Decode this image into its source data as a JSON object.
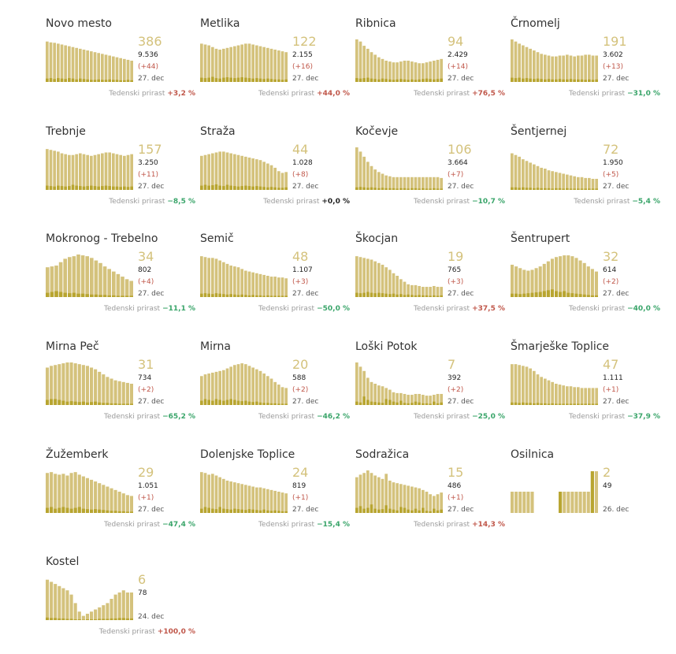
{
  "colors": {
    "bar": "#d4c27c",
    "bar_low": "#b8a530",
    "bar_older": "#d8c786",
    "positive": "#c0574a",
    "negative": "#3aa56a",
    "label": "#9a9a9a"
  },
  "growth_label": "Tedenski prirast",
  "chart_data": [
    {
      "type": "bar",
      "name": "Novo mesto",
      "active": "386",
      "total": "9.536",
      "delta": "(+44)",
      "date": "27. dec",
      "growth": "+3,2 %",
      "values": [
        95,
        93,
        92,
        90,
        88,
        86,
        84,
        82,
        80,
        78,
        76,
        74,
        72,
        70,
        68,
        66,
        64,
        62,
        60,
        58,
        56,
        54,
        52,
        50
      ],
      "lows": [
        8,
        9,
        7,
        9,
        8,
        7,
        9,
        8,
        6,
        8,
        7,
        6,
        5,
        5,
        6,
        5,
        5,
        6,
        5,
        5,
        4,
        4,
        5,
        4
      ]
    },
    {
      "type": "bar",
      "name": "Metlika",
      "active": "122",
      "total": "2.155",
      "delta": "(+16)",
      "date": "27. dec",
      "growth": "+44,0 %",
      "values": [
        90,
        88,
        86,
        82,
        78,
        76,
        78,
        80,
        82,
        84,
        86,
        88,
        90,
        90,
        88,
        86,
        84,
        82,
        80,
        78,
        76,
        74,
        72,
        70
      ],
      "lows": [
        10,
        9,
        10,
        12,
        9,
        8,
        10,
        11,
        10,
        9,
        10,
        11,
        10,
        9,
        8,
        9,
        8,
        7,
        8,
        7,
        6,
        6,
        5,
        6
      ]
    },
    {
      "type": "bar",
      "name": "Ribnica",
      "active": "94",
      "total": "2.429",
      "delta": "(+14)",
      "date": "27. dec",
      "growth": "+76,5 %",
      "values": [
        100,
        95,
        85,
        78,
        70,
        64,
        58,
        54,
        50,
        48,
        46,
        46,
        48,
        50,
        50,
        48,
        46,
        44,
        44,
        46,
        48,
        50,
        52,
        54
      ],
      "lows": [
        9,
        8,
        9,
        10,
        8,
        7,
        6,
        8,
        7,
        6,
        5,
        6,
        7,
        6,
        5,
        6,
        5,
        6,
        7,
        8,
        7,
        6,
        7,
        8
      ]
    },
    {
      "type": "bar",
      "name": "Črnomelj",
      "active": "191",
      "total": "3.602",
      "delta": "(+13)",
      "date": "27. dec",
      "growth": "−31,0 %",
      "values": [
        100,
        95,
        90,
        86,
        82,
        78,
        74,
        70,
        66,
        64,
        62,
        60,
        60,
        62,
        62,
        64,
        62,
        60,
        62,
        62,
        64,
        64,
        62,
        62
      ],
      "lows": [
        10,
        9,
        10,
        8,
        9,
        8,
        7,
        8,
        7,
        6,
        7,
        6,
        6,
        7,
        6,
        6,
        7,
        6,
        6,
        6,
        5,
        6,
        5,
        6
      ]
    },
    {
      "type": "bar",
      "name": "Trebnje",
      "active": "157",
      "total": "3.250",
      "delta": "(+11)",
      "date": "27. dec",
      "growth": "−8,5 %",
      "values": [
        96,
        94,
        92,
        90,
        86,
        84,
        82,
        82,
        84,
        86,
        84,
        82,
        80,
        82,
        84,
        86,
        88,
        88,
        86,
        84,
        82,
        80,
        82,
        84
      ],
      "lows": [
        10,
        9,
        8,
        10,
        9,
        8,
        9,
        12,
        10,
        9,
        8,
        9,
        10,
        9,
        8,
        9,
        10,
        9,
        8,
        8,
        7,
        8,
        7,
        8
      ]
    },
    {
      "type": "bar",
      "name": "Straža",
      "active": "44",
      "total": "1.028",
      "delta": "(+8)",
      "date": "27. dec",
      "growth": "+0,0 %",
      "values": [
        80,
        82,
        84,
        86,
        88,
        90,
        90,
        88,
        86,
        84,
        82,
        80,
        78,
        76,
        74,
        72,
        70,
        66,
        62,
        58,
        52,
        44,
        40,
        42
      ],
      "lows": [
        10,
        12,
        10,
        11,
        13,
        10,
        9,
        12,
        10,
        9,
        8,
        9,
        10,
        9,
        8,
        9,
        8,
        7,
        6,
        7,
        6,
        5,
        5,
        6
      ]
    },
    {
      "type": "bar",
      "name": "Kočevje",
      "active": "106",
      "total": "3.664",
      "delta": "(+7)",
      "date": "27. dec",
      "growth": "−10,7 %",
      "values": [
        100,
        90,
        78,
        66,
        56,
        48,
        42,
        38,
        34,
        32,
        30,
        30,
        30,
        30,
        30,
        30,
        30,
        30,
        30,
        30,
        30,
        30,
        30,
        28
      ],
      "lows": [
        6,
        7,
        6,
        5,
        6,
        5,
        4,
        5,
        4,
        4,
        4,
        3,
        4,
        4,
        3,
        4,
        4,
        3,
        4,
        3,
        3,
        4,
        3,
        3
      ]
    },
    {
      "type": "bar",
      "name": "Šentjernej",
      "active": "72",
      "total": "1.950",
      "delta": "(+5)",
      "date": "27. dec",
      "growth": "−5,4 %",
      "values": [
        86,
        82,
        78,
        72,
        68,
        64,
        60,
        56,
        52,
        50,
        46,
        44,
        42,
        40,
        38,
        36,
        34,
        32,
        30,
        30,
        28,
        28,
        26,
        26
      ],
      "lows": [
        6,
        6,
        5,
        6,
        5,
        5,
        4,
        5,
        4,
        4,
        4,
        3,
        4,
        4,
        3,
        4,
        3,
        3,
        3,
        3,
        3,
        3,
        3,
        3
      ]
    },
    {
      "type": "bar",
      "name": "Mokronog - Trebelno",
      "active": "34",
      "total": "802",
      "delta": "(+4)",
      "date": "27. dec",
      "growth": "−11,1 %",
      "values": [
        70,
        72,
        74,
        82,
        90,
        94,
        96,
        100,
        98,
        96,
        92,
        86,
        80,
        72,
        66,
        60,
        54,
        48,
        42,
        38
      ],
      "lows": [
        10,
        12,
        14,
        12,
        10,
        9,
        10,
        8,
        8,
        7,
        6,
        6,
        5,
        5,
        4,
        4,
        3,
        3,
        3,
        3
      ]
    },
    {
      "type": "bar",
      "name": "Semič",
      "active": "48",
      "total": "1.107",
      "delta": "(+3)",
      "date": "27. dec",
      "growth": "−50,0 %",
      "values": [
        96,
        94,
        92,
        92,
        90,
        86,
        82,
        78,
        74,
        72,
        70,
        66,
        62,
        60,
        58,
        56,
        54,
        52,
        50,
        48,
        48,
        46,
        46,
        44
      ],
      "lows": [
        8,
        9,
        8,
        7,
        9,
        8,
        7,
        6,
        7,
        6,
        5,
        6,
        5,
        4,
        5,
        4,
        4,
        3,
        4,
        3,
        3,
        3,
        3,
        3
      ]
    },
    {
      "type": "bar",
      "name": "Škocjan",
      "active": "19",
      "total": "765",
      "delta": "(+3)",
      "date": "27. dec",
      "growth": "+37,5 %",
      "values": [
        96,
        94,
        92,
        90,
        88,
        84,
        80,
        76,
        70,
        64,
        56,
        50,
        42,
        36,
        30,
        28,
        28,
        26,
        24,
        24,
        24,
        26,
        24,
        24
      ],
      "lows": [
        10,
        9,
        10,
        12,
        10,
        9,
        10,
        9,
        8,
        7,
        8,
        6,
        7,
        5,
        6,
        5,
        4,
        5,
        4,
        4,
        3,
        4,
        3,
        4
      ]
    },
    {
      "type": "bar",
      "name": "Šentrupert",
      "active": "32",
      "total": "614",
      "delta": "(+2)",
      "date": "27. dec",
      "growth": "−40,0 %",
      "values": [
        76,
        72,
        68,
        64,
        62,
        64,
        68,
        72,
        78,
        84,
        90,
        94,
        96,
        98,
        98,
        96,
        92,
        86,
        80,
        72,
        66,
        60
      ],
      "lows": [
        8,
        8,
        7,
        8,
        9,
        10,
        11,
        12,
        14,
        16,
        18,
        14,
        12,
        14,
        10,
        9,
        8,
        7,
        6,
        5,
        4,
        4
      ]
    },
    {
      "type": "bar",
      "name": "Mirna Peč",
      "active": "31",
      "total": "734",
      "delta": "(+2)",
      "date": "27. dec",
      "growth": "−65,2 %",
      "values": [
        88,
        92,
        94,
        96,
        98,
        100,
        100,
        98,
        96,
        94,
        92,
        88,
        84,
        78,
        72,
        66,
        62,
        58,
        56,
        54,
        52,
        50
      ],
      "lows": [
        12,
        14,
        14,
        12,
        10,
        8,
        9,
        8,
        7,
        8,
        6,
        7,
        8,
        6,
        5,
        5,
        4,
        4,
        3,
        3,
        3,
        3
      ]
    },
    {
      "type": "bar",
      "name": "Mirna",
      "active": "20",
      "total": "588",
      "delta": "(+2)",
      "date": "27. dec",
      "growth": "−46,2 %",
      "values": [
        68,
        72,
        74,
        76,
        78,
        80,
        82,
        86,
        90,
        94,
        96,
        98,
        96,
        92,
        88,
        84,
        80,
        74,
        68,
        62,
        54,
        48,
        42,
        40
      ],
      "lows": [
        10,
        14,
        12,
        10,
        14,
        12,
        10,
        12,
        14,
        12,
        10,
        9,
        10,
        8,
        7,
        8,
        6,
        5,
        5,
        4,
        4,
        3,
        3,
        3
      ]
    },
    {
      "type": "bar",
      "name": "Loški Potok",
      "active": "7",
      "total": "392",
      "delta": "(+2)",
      "date": "27. dec",
      "growth": "−25,0 %",
      "values": [
        100,
        90,
        80,
        64,
        54,
        50,
        46,
        44,
        40,
        36,
        30,
        28,
        28,
        26,
        24,
        24,
        26,
        26,
        24,
        22,
        22,
        24,
        26,
        26
      ],
      "lows": [
        8,
        6,
        20,
        12,
        8,
        7,
        6,
        5,
        14,
        12,
        8,
        6,
        10,
        5,
        4,
        5,
        8,
        6,
        4,
        4,
        3,
        8,
        4,
        6
      ]
    },
    {
      "type": "bar",
      "name": "Šmarješke Toplice",
      "active": "47",
      "total": "1.111",
      "delta": "(+1)",
      "date": "27. dec",
      "growth": "−37,9 %",
      "values": [
        96,
        96,
        94,
        92,
        90,
        86,
        80,
        72,
        66,
        62,
        58,
        54,
        50,
        48,
        46,
        44,
        44,
        42,
        42,
        40,
        40,
        40,
        40,
        40
      ],
      "lows": [
        6,
        6,
        5,
        6,
        5,
        5,
        4,
        5,
        4,
        4,
        3,
        4,
        3,
        3,
        3,
        3,
        3,
        3,
        3,
        3,
        3,
        3,
        3,
        3
      ]
    },
    {
      "type": "bar",
      "name": "Žužemberk",
      "active": "29",
      "total": "1.051",
      "delta": "(+1)",
      "date": "27. dec",
      "growth": "−47,4 %",
      "values": [
        94,
        96,
        92,
        90,
        92,
        88,
        94,
        96,
        90,
        86,
        82,
        78,
        74,
        70,
        66,
        62,
        58,
        54,
        50,
        46,
        42,
        40
      ],
      "lows": [
        12,
        14,
        10,
        12,
        14,
        12,
        10,
        12,
        14,
        10,
        9,
        8,
        9,
        8,
        7,
        6,
        5,
        5,
        4,
        4,
        3,
        3
      ]
    },
    {
      "type": "bar",
      "name": "Dolenjske Toplice",
      "active": "24",
      "total": "819",
      "delta": "(+1)",
      "date": "27. dec",
      "growth": "−15,4 %",
      "values": [
        96,
        94,
        90,
        92,
        88,
        84,
        80,
        76,
        74,
        72,
        70,
        68,
        66,
        64,
        62,
        60,
        60,
        58,
        56,
        54,
        52,
        50,
        48,
        46
      ],
      "lows": [
        10,
        14,
        12,
        10,
        9,
        14,
        10,
        9,
        8,
        10,
        9,
        8,
        7,
        9,
        8,
        7,
        6,
        8,
        6,
        5,
        6,
        5,
        4,
        4
      ]
    },
    {
      "type": "bar",
      "name": "Sodražica",
      "active": "15",
      "total": "486",
      "delta": "(+1)",
      "date": "27. dec",
      "growth": "+14,3 %",
      "values": [
        84,
        90,
        94,
        100,
        94,
        88,
        84,
        80,
        92,
        76,
        72,
        70,
        68,
        66,
        64,
        62,
        60,
        58,
        54,
        50,
        44,
        40,
        44,
        48
      ],
      "lows": [
        12,
        16,
        10,
        12,
        20,
        10,
        8,
        9,
        18,
        10,
        8,
        6,
        14,
        12,
        8,
        6,
        10,
        6,
        12,
        5,
        4,
        10,
        6,
        8
      ]
    },
    {
      "type": "bar",
      "name": "Osilnica",
      "active": "2",
      "total": "49",
      "delta": "",
      "date": "26. dec",
      "growth": "",
      "values": [
        50,
        50,
        50,
        50,
        50,
        50,
        0,
        0,
        0,
        0,
        0,
        0,
        50,
        50,
        50,
        50,
        50,
        50,
        50,
        50,
        98,
        98
      ],
      "lows": [
        0,
        0,
        0,
        0,
        0,
        0,
        0,
        0,
        0,
        0,
        0,
        0,
        50,
        0,
        0,
        0,
        0,
        0,
        0,
        0,
        98,
        0
      ]
    },
    {
      "type": "bar",
      "name": "Kostel",
      "active": "6",
      "total": "78",
      "delta": "",
      "date": "24. dec",
      "growth": "+100,0 %",
      "values": [
        95,
        90,
        85,
        80,
        75,
        70,
        60,
        40,
        20,
        10,
        15,
        20,
        25,
        30,
        35,
        40,
        50,
        60,
        65,
        70,
        65,
        65
      ],
      "lows": [
        6,
        5,
        5,
        4,
        4,
        3,
        3,
        2,
        2,
        1,
        2,
        2,
        2,
        3,
        3,
        3,
        4,
        4,
        5,
        5,
        4,
        4
      ]
    }
  ]
}
